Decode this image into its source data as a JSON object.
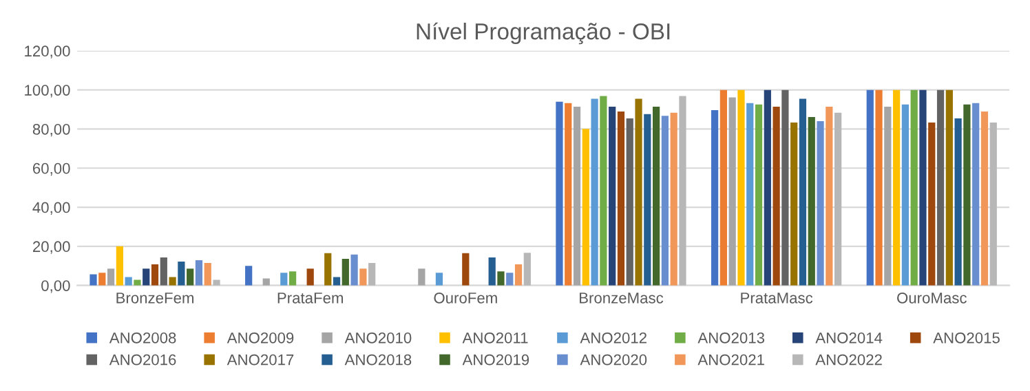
{
  "chart_data": {
    "type": "bar",
    "title": "Nível Programação - OBI",
    "categories": [
      "BronzeFem",
      "PrataFem",
      "OuroFem",
      "BronzeMasc",
      "PrataMasc",
      "OuroMasc"
    ],
    "series": [
      {
        "name": "ANO2008",
        "color": "#4472c4",
        "values": [
          5.7,
          10,
          null,
          94,
          89.7,
          100
        ]
      },
      {
        "name": "ANO2009",
        "color": "#ed7d31",
        "values": [
          6.5,
          null,
          null,
          93.3,
          100,
          100
        ]
      },
      {
        "name": "ANO2010",
        "color": "#a5a5a5",
        "values": [
          8.6,
          3.6,
          8.6,
          91.4,
          96.2,
          91.4
        ]
      },
      {
        "name": "ANO2011",
        "color": "#ffc000",
        "values": [
          20,
          null,
          null,
          80.1,
          100,
          100
        ]
      },
      {
        "name": "ANO2012",
        "color": "#5b9bd5",
        "values": [
          4.3,
          6.5,
          6.5,
          95.5,
          93.3,
          92.6
        ]
      },
      {
        "name": "ANO2013",
        "color": "#70ad47",
        "values": [
          2.9,
          7.2,
          null,
          96.9,
          92.6,
          100
        ]
      },
      {
        "name": "ANO2014",
        "color": "#264478",
        "values": [
          8.6,
          null,
          null,
          91.4,
          100,
          100
        ]
      },
      {
        "name": "ANO2015",
        "color": "#9e480e",
        "values": [
          10.8,
          8.6,
          16.5,
          89,
          91.4,
          83.3
        ]
      },
      {
        "name": "ANO2016",
        "color": "#636363",
        "values": [
          14.3,
          null,
          null,
          85.4,
          100,
          100
        ]
      },
      {
        "name": "ANO2017",
        "color": "#997300",
        "values": [
          4.3,
          16.5,
          null,
          95.5,
          83.3,
          100
        ]
      },
      {
        "name": "ANO2018",
        "color": "#255e91",
        "values": [
          12.2,
          4.3,
          14.3,
          87.6,
          95.5,
          85.4
        ]
      },
      {
        "name": "ANO2019",
        "color": "#43682b",
        "values": [
          8.6,
          13.6,
          7.2,
          91.4,
          86.1,
          92.6
        ]
      },
      {
        "name": "ANO2020",
        "color": "#698ed0",
        "values": [
          12.9,
          15.8,
          6.5,
          86.8,
          84,
          93.3
        ]
      },
      {
        "name": "ANO2021",
        "color": "#f1975a",
        "values": [
          11.5,
          8.6,
          10.8,
          88.3,
          91.4,
          89
        ]
      },
      {
        "name": "ANO2022",
        "color": "#b7b7b7",
        "values": [
          2.9,
          11.5,
          16.7,
          96.9,
          88.3,
          83.3
        ]
      }
    ],
    "ylim": [
      0,
      120
    ],
    "yticks": [
      {
        "value": 0,
        "label": "0,00"
      },
      {
        "value": 20,
        "label": "20,00"
      },
      {
        "value": 40,
        "label": "40,00"
      },
      {
        "value": 60,
        "label": "60,00"
      },
      {
        "value": 80,
        "label": "80,00"
      },
      {
        "value": 100,
        "label": "100,00"
      },
      {
        "value": 120,
        "label": "120,00"
      }
    ],
    "grid": "y",
    "legend": "bottom"
  }
}
